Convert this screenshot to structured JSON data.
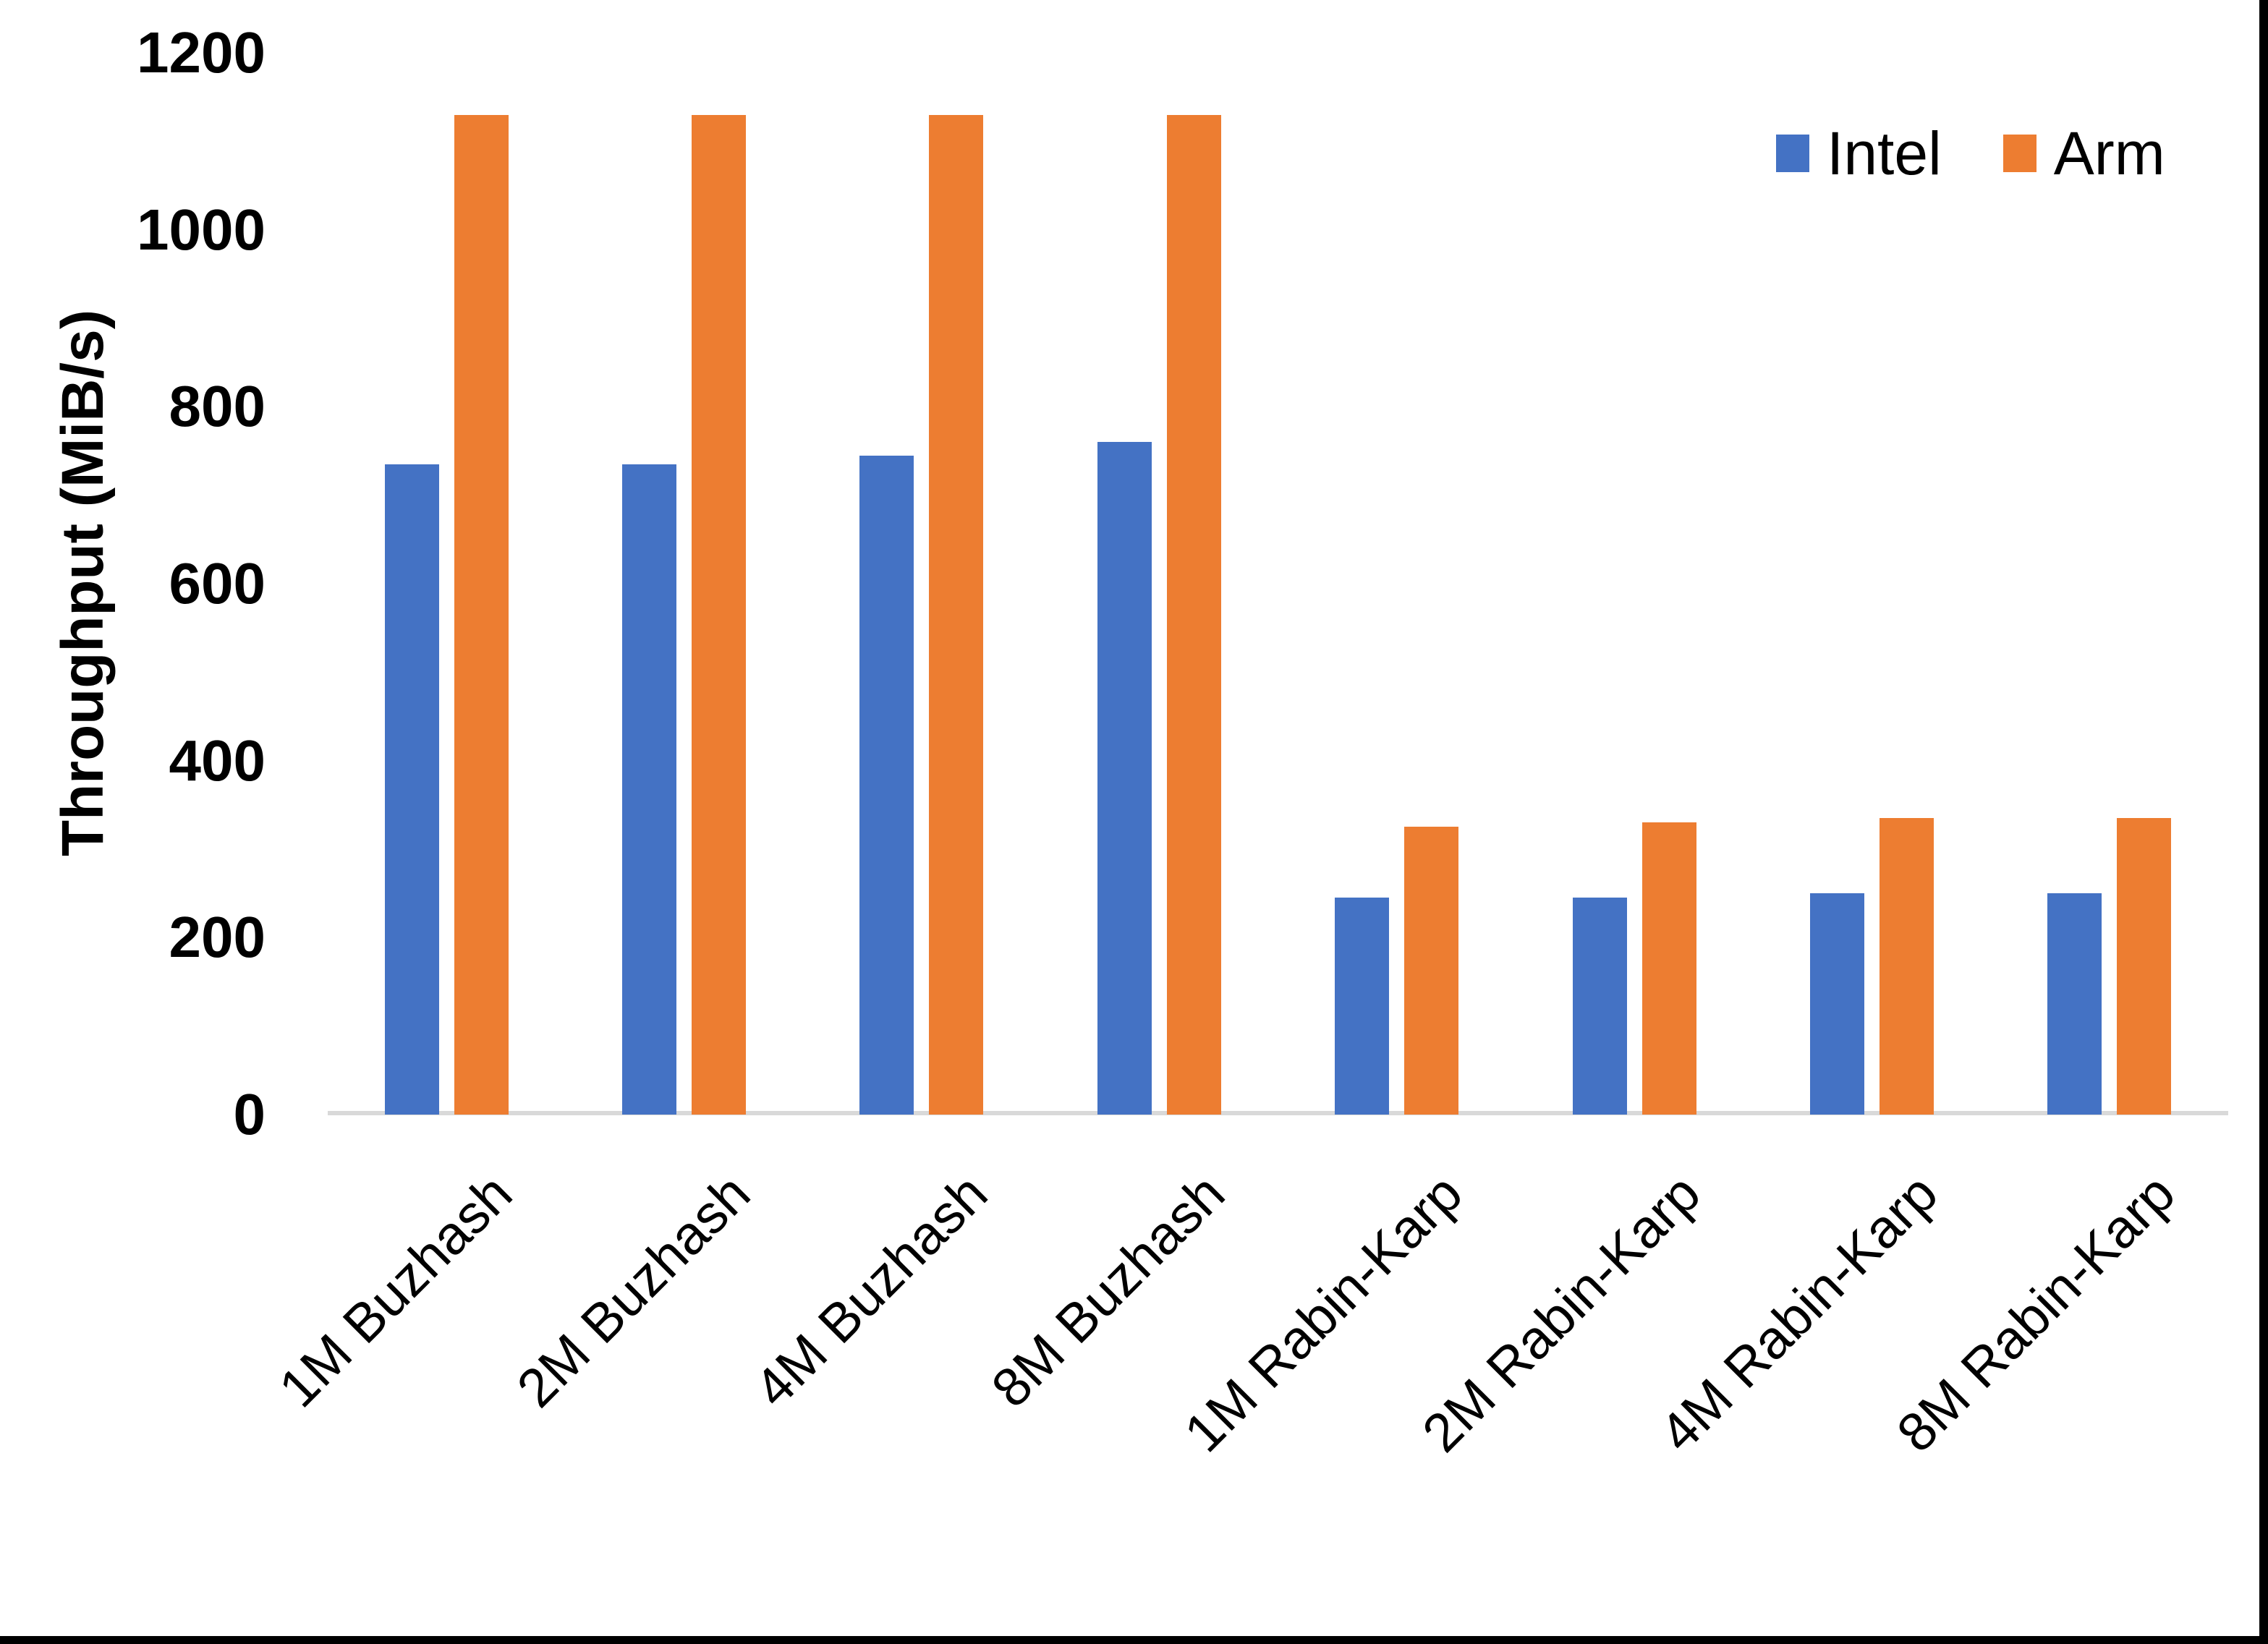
{
  "chart_data": {
    "type": "bar",
    "title": "",
    "xlabel": "",
    "ylabel": "Throughput (MiB/s)",
    "ylim": [
      0,
      1200
    ],
    "yticks": [
      0,
      200,
      400,
      600,
      800,
      1000,
      1200
    ],
    "grid": false,
    "legend_position": "top-right",
    "categories": [
      "1M Buzhash",
      "2M Buzhash",
      "4M Buzhash",
      "8M Buzhash",
      "1M Rabin-Karp",
      "2M Rabin-Karp",
      "4M Rabin-Karp",
      "8M Rabin-Karp"
    ],
    "series": [
      {
        "name": "Intel",
        "color": "#4472C4",
        "values": [
          735,
          735,
          745,
          760,
          245,
          245,
          250,
          250
        ]
      },
      {
        "name": "Arm",
        "color": "#ED7D31",
        "values": [
          1130,
          1130,
          1130,
          1130,
          325,
          330,
          335,
          335
        ]
      }
    ],
    "axis_line_color": "#D9D9D9",
    "text_color": "#000000"
  }
}
